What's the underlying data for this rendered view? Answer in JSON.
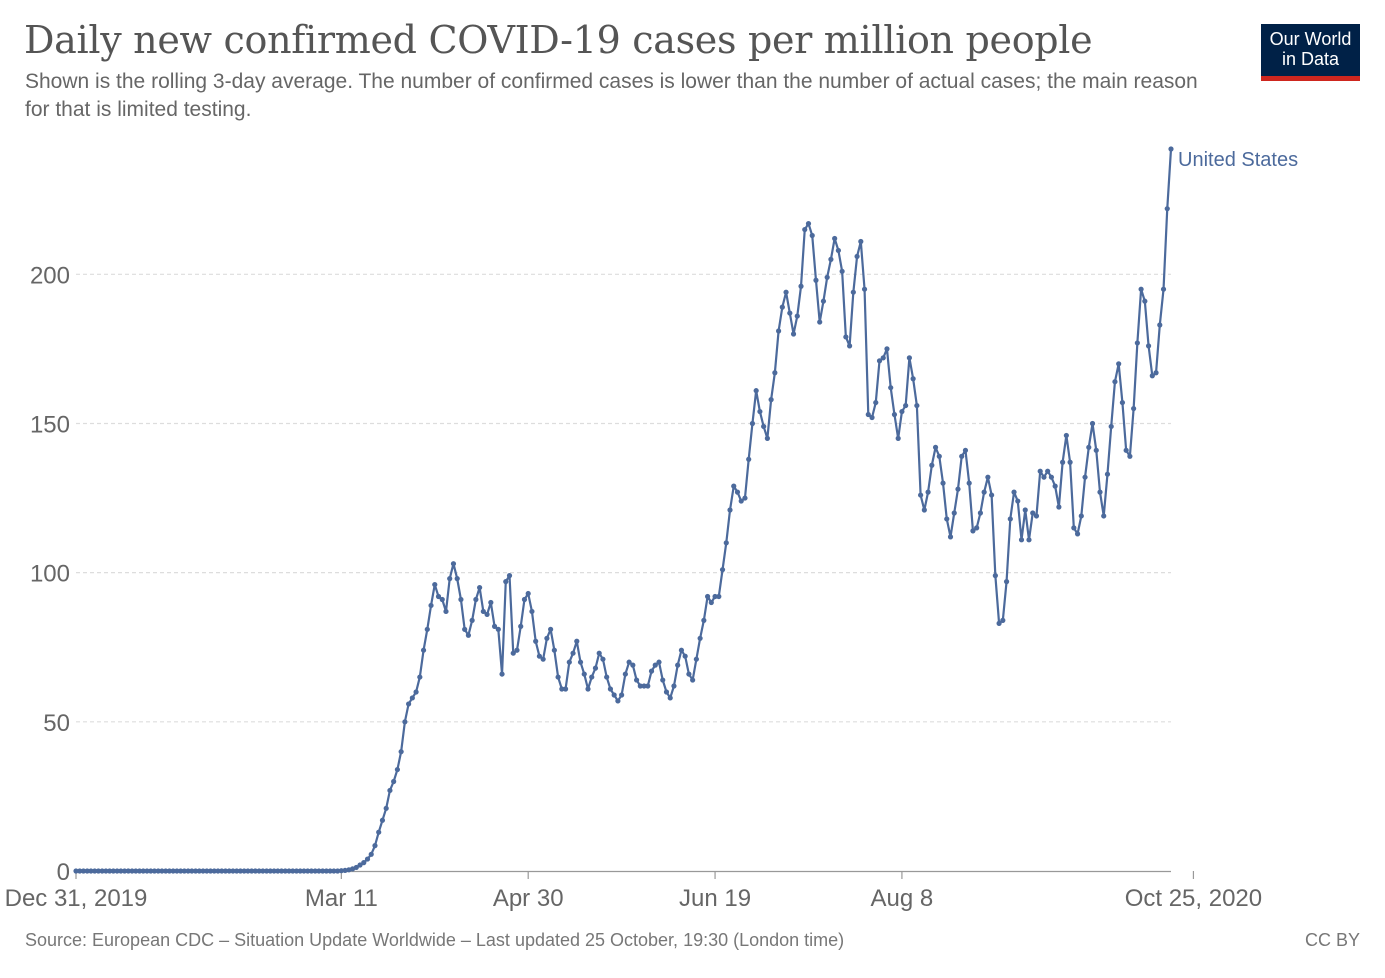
{
  "header": {
    "title": "Daily new confirmed COVID-19 cases per million people",
    "subtitle": "Shown is the rolling 3-day average. The number of confirmed cases is lower than the number of actual cases; the main reason for that is limited testing.",
    "logo_line1": "Our World",
    "logo_line2": "in Data"
  },
  "footer": {
    "source": "Source: European CDC – Situation Update Worldwide – Last updated 25 October, 19:30 (London time)",
    "license": "CC BY"
  },
  "colors": {
    "series": "#4c6a9c",
    "grid": "#dddddd",
    "axis": "#999999",
    "label": "#666666",
    "logo_bg": "#002147",
    "logo_accent": "#ce261e"
  },
  "chart_data": {
    "type": "line",
    "title": "Daily new confirmed COVID-19 cases per million people",
    "xlabel": "",
    "ylabel": "",
    "ylim": [
      0,
      242
    ],
    "yticks": [
      0,
      50,
      100,
      150,
      200
    ],
    "x_start": "Dec 31, 2019",
    "x_end": "Oct 25, 2020",
    "xticks": [
      "Dec 31, 2019",
      "Mar 11",
      "Apr 30",
      "Jun 19",
      "Aug 8",
      "Oct 25, 2020"
    ],
    "grid": true,
    "legend": "end-of-line label",
    "series": [
      {
        "name": "United States",
        "values": [
          0,
          0,
          0,
          0,
          0,
          0,
          0,
          0,
          0,
          0,
          0,
          0,
          0,
          0,
          0,
          0,
          0,
          0,
          0,
          0,
          0,
          0,
          0,
          0,
          0,
          0,
          0,
          0,
          0,
          0,
          0,
          0,
          0,
          0,
          0,
          0,
          0,
          0,
          0,
          0,
          0,
          0,
          0,
          0,
          0,
          0,
          0,
          0,
          0,
          0,
          0,
          0,
          0,
          0,
          0,
          0,
          0,
          0,
          0,
          0,
          0,
          0,
          0,
          0,
          0,
          0,
          0,
          0,
          0,
          0,
          0,
          0.1,
          0.2,
          0.4,
          0.7,
          1.2,
          2,
          2.8,
          4,
          5.6,
          8.5,
          13,
          17,
          21,
          27,
          30,
          34,
          40,
          50,
          56,
          58,
          60,
          65,
          74,
          81,
          89,
          96,
          92,
          91,
          87,
          98,
          103,
          98,
          91,
          81,
          79,
          84,
          91,
          95,
          87,
          86,
          90,
          82,
          81,
          66,
          97,
          99,
          73,
          74,
          82,
          91,
          93,
          87,
          77,
          72,
          71,
          78,
          81,
          74,
          65,
          61,
          61,
          70,
          73,
          77,
          70,
          66,
          61,
          65,
          68,
          73,
          71,
          65,
          61,
          59,
          57,
          59,
          66,
          70,
          69,
          64,
          62,
          62,
          62,
          67,
          69,
          70,
          64,
          60,
          58,
          62,
          69,
          74,
          72,
          66,
          64,
          71,
          78,
          84,
          92,
          90,
          92,
          92,
          101,
          110,
          121,
          129,
          127,
          124,
          125,
          138,
          150,
          161,
          154,
          149,
          145,
          158,
          167,
          181,
          189,
          194,
          187,
          180,
          186,
          196,
          215,
          217,
          213,
          198,
          184,
          191,
          199,
          205,
          212,
          208,
          201,
          179,
          176,
          194,
          206,
          211,
          195,
          153,
          152,
          157,
          171,
          172,
          175,
          162,
          153,
          145,
          154,
          156,
          172,
          165,
          156,
          126,
          121,
          127,
          136,
          142,
          139,
          130,
          118,
          112,
          120,
          128,
          139,
          141,
          130,
          114,
          115,
          120,
          127,
          132,
          126,
          99,
          83,
          84,
          97,
          118,
          127,
          124,
          111,
          121,
          111,
          120,
          119,
          134,
          132,
          134,
          132,
          129,
          122,
          137,
          146,
          137,
          115,
          113,
          119,
          132,
          142,
          150,
          141,
          127,
          119,
          133,
          149,
          164,
          170,
          157,
          141,
          139,
          155,
          177,
          195,
          191,
          176,
          166,
          167,
          183,
          195,
          222,
          242
        ]
      }
    ]
  }
}
